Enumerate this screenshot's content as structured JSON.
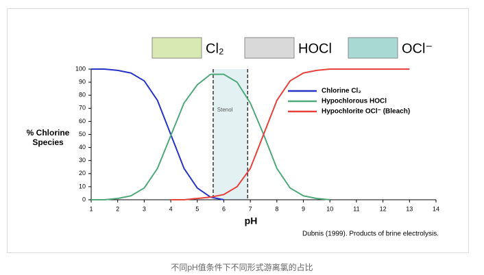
{
  "chart_data": {
    "type": "line",
    "species_boxes": [
      {
        "label": "Cl₂",
        "color": "#d8e9b3"
      },
      {
        "label": "HOCl",
        "color": "#d9d9d9"
      },
      {
        "label": "OCl⁻",
        "color": "#a9d9d3"
      }
    ],
    "xlabel": "pH",
    "ylabel": "% Chlorine Species",
    "source": "Dubnis (1999). Products of brine electrolysis.",
    "shaded_region": {
      "from": 5.6,
      "to": 6.9,
      "label": "Stenol",
      "color": "#e3f1f3"
    },
    "x": [
      1,
      1.5,
      2,
      2.5,
      3,
      3.5,
      4,
      4.5,
      5,
      5.5,
      6,
      6.5,
      7,
      7.5,
      8,
      8.5,
      9,
      9.5,
      10,
      10.5,
      11,
      11.5,
      12,
      12.5,
      13
    ],
    "series": [
      {
        "name": "Chlorine Cl₂",
        "color": "#2633c8",
        "values": [
          100,
          100,
          99,
          97,
          91,
          76,
          50,
          24,
          9,
          2,
          0,
          null,
          null,
          null,
          null,
          null,
          null,
          null,
          null,
          null,
          null,
          null,
          null,
          null,
          null
        ]
      },
      {
        "name": "Hypochlorous HOCl",
        "color": "#4fa87a",
        "values": [
          0,
          0,
          1,
          3,
          9,
          24,
          49,
          74,
          88,
          96,
          96,
          90,
          74,
          50,
          24,
          9,
          3,
          1,
          0,
          null,
          null,
          null,
          null,
          null,
          null
        ]
      },
      {
        "name": "Hypochlorite OCl⁻ (Bleach)",
        "color": "#e8403a",
        "values": [
          null,
          null,
          null,
          null,
          null,
          null,
          0,
          0,
          1,
          2,
          4,
          10,
          24,
          50,
          76,
          91,
          97,
          99,
          100,
          100,
          100,
          100,
          100,
          100,
          100
        ]
      }
    ],
    "xlim": [
      1,
      14
    ],
    "xticks": [
      1,
      2,
      3,
      4,
      5,
      6,
      7,
      8,
      9,
      10,
      11,
      12,
      13,
      14
    ],
    "ylim": [
      0,
      100
    ],
    "yticks": [
      0,
      10,
      20,
      30,
      40,
      50,
      60,
      70,
      80,
      90,
      100
    ]
  },
  "caption": "不同pH值条件下不同形式游离氯的占比"
}
